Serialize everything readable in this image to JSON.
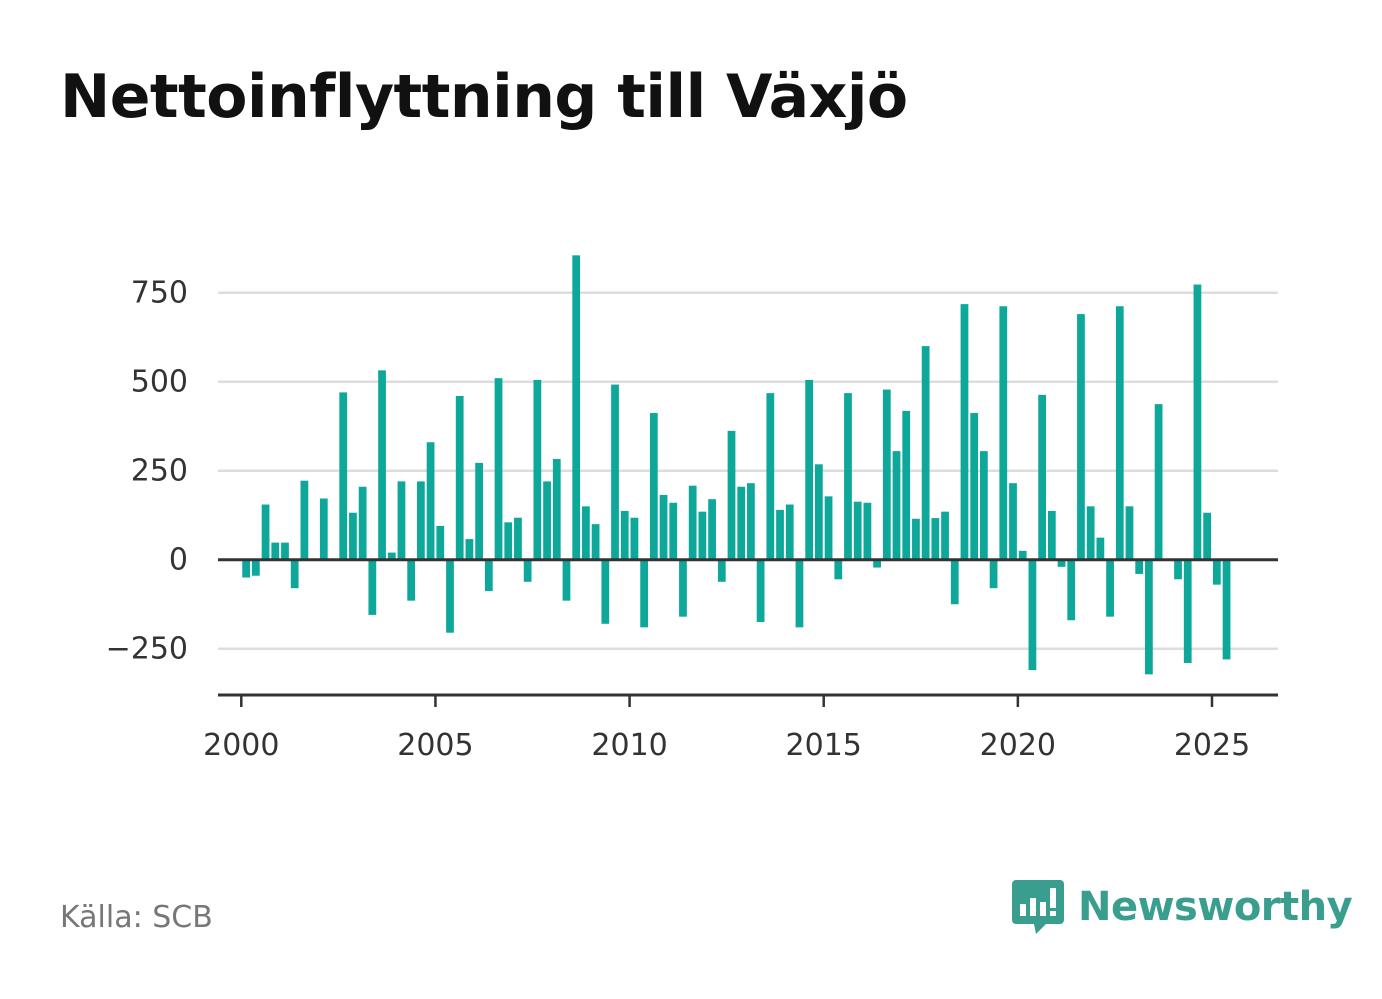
{
  "header": {
    "title": "Nettoinflyttning till Växjö"
  },
  "footer": {
    "source": "Källa: SCB",
    "brand": "Newsworthy"
  },
  "colors": {
    "bar": "#0ea89b",
    "grid": "#dddddd",
    "zero_line": "#333333",
    "brand": "#3a9e8f"
  },
  "chart_data": {
    "type": "bar",
    "title": "Nettoinflyttning till Växjö",
    "xlabel": "",
    "ylabel": "",
    "ylim": [
      -380,
      870
    ],
    "xlim": [
      1999.4,
      2026.7
    ],
    "grid": true,
    "yticks": [
      {
        "value": 750,
        "label": "750"
      },
      {
        "value": 500,
        "label": "500"
      },
      {
        "value": 250,
        "label": "250"
      },
      {
        "value": 0,
        "label": "0"
      },
      {
        "value": -250,
        "label": "−250"
      }
    ],
    "xticks": [
      {
        "value": 2000,
        "label": "2000"
      },
      {
        "value": 2005,
        "label": "2005"
      },
      {
        "value": 2010,
        "label": "2010"
      },
      {
        "value": 2015,
        "label": "2015"
      },
      {
        "value": 2020,
        "label": "2020"
      },
      {
        "value": 2025,
        "label": "2025"
      }
    ],
    "period_start": 2000,
    "periods_per_year": 4,
    "values": [
      -50,
      -45,
      155,
      48,
      48,
      -80,
      222,
      0,
      172,
      0,
      470,
      132,
      205,
      -155,
      532,
      20,
      220,
      -115,
      220,
      330,
      95,
      -205,
      460,
      58,
      272,
      -88,
      510,
      105,
      118,
      -62,
      505,
      220,
      283,
      -115,
      855,
      150,
      100,
      -180,
      492,
      137,
      118,
      -190,
      412,
      182,
      160,
      -160,
      208,
      135,
      170,
      -62,
      362,
      205,
      215,
      -175,
      468,
      140,
      155,
      -190,
      505,
      268,
      178,
      -55,
      468,
      163,
      160,
      -22,
      478,
      305,
      418,
      115,
      600,
      117,
      135,
      -125,
      718,
      412,
      305,
      -80,
      712,
      215,
      25,
      -310,
      463,
      137,
      -20,
      -170,
      690,
      150,
      62,
      -160,
      712,
      150,
      -40,
      -322,
      437,
      0,
      -55,
      -290,
      773,
      132,
      -70,
      -280
    ]
  }
}
